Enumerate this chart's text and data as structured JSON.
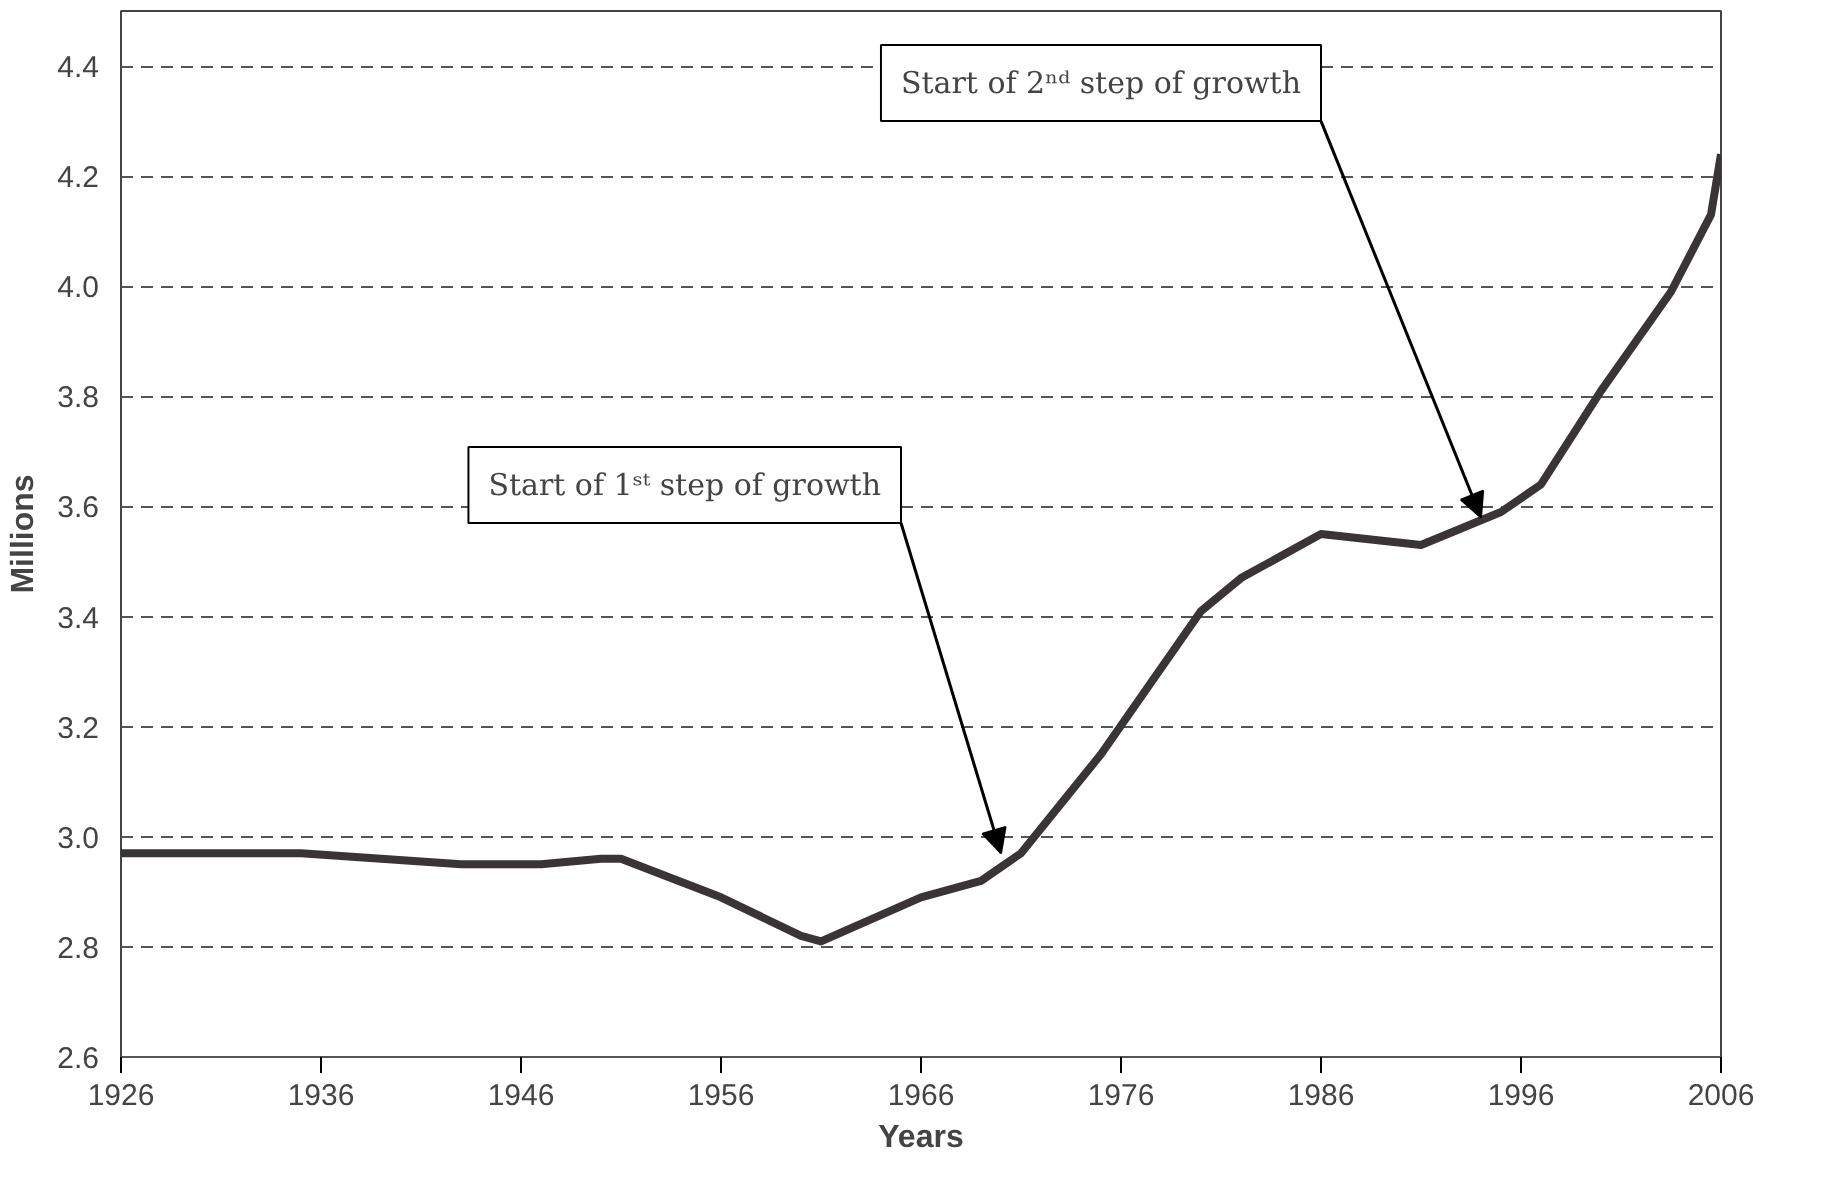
{
  "chart_data": {
    "type": "line",
    "xlabel": "Years",
    "ylabel": "Millions",
    "xlim": [
      1926,
      2006
    ],
    "ylim": [
      2.6,
      4.5
    ],
    "xticks": [
      1926,
      1936,
      1946,
      1956,
      1966,
      1976,
      1986,
      1996,
      2006
    ],
    "yticks": [
      {
        "value": 2.6,
        "label": "2.6"
      },
      {
        "value": 2.8,
        "label": "2.8"
      },
      {
        "value": 3.0,
        "label": "3.0"
      },
      {
        "value": 3.2,
        "label": "3.2"
      },
      {
        "value": 3.4,
        "label": "3.4"
      },
      {
        "value": 3.6,
        "label": "3.6"
      },
      {
        "value": 3.8,
        "label": "3.8"
      },
      {
        "value": 4.0,
        "label": "4.0"
      },
      {
        "value": 4.2,
        "label": "4.2"
      },
      {
        "value": 4.4,
        "label": "4.4"
      }
    ],
    "grid": "y",
    "line_style": "solid",
    "marker": "none",
    "series": [
      {
        "color": "#3a3436",
        "x": [
          1926,
          1935,
          1943,
          1947,
          1950,
          1951,
          1956,
          1960,
          1961,
          1966,
          1969,
          1971,
          1975,
          1980,
          1982,
          1986,
          1991,
          1995,
          1997,
          2000,
          2003.5,
          2005.5,
          2006
        ],
        "values": [
          2.97,
          2.97,
          2.95,
          2.95,
          2.96,
          2.96,
          2.89,
          2.82,
          2.81,
          2.89,
          2.92,
          2.97,
          3.15,
          3.41,
          3.47,
          3.55,
          3.53,
          3.59,
          3.64,
          3.81,
          3.99,
          4.13,
          4.24
        ]
      }
    ],
    "annotations": [
      {
        "text": "Start of 1ˢᵗ step of growth",
        "x": 1970,
        "y": 2.97
      },
      {
        "text": "Start of 2ⁿᵈ step of growth",
        "x": 1994,
        "y": 3.58
      }
    ]
  }
}
